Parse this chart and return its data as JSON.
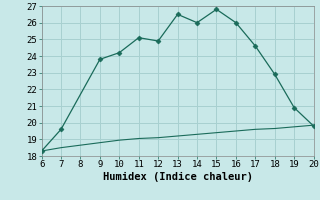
{
  "xlabel": "Humidex (Indice chaleur)",
  "x_main": [
    6,
    7,
    9,
    10,
    11,
    12,
    13,
    14,
    15,
    16,
    17,
    18,
    19,
    20
  ],
  "y_main": [
    18.3,
    19.6,
    23.8,
    24.2,
    25.1,
    24.9,
    26.5,
    26.0,
    26.8,
    26.0,
    24.6,
    22.9,
    20.9,
    19.8
  ],
  "x_flat": [
    6,
    7,
    8,
    9,
    10,
    11,
    12,
    13,
    14,
    15,
    16,
    17,
    18,
    19,
    20
  ],
  "y_flat": [
    18.3,
    18.5,
    18.65,
    18.8,
    18.95,
    19.05,
    19.1,
    19.2,
    19.3,
    19.4,
    19.5,
    19.6,
    19.65,
    19.75,
    19.85
  ],
  "line_color": "#1a6b5a",
  "bg_color": "#c8e8e8",
  "grid_color": "#a8d0d0",
  "marker": "D",
  "marker_size": 2.5,
  "ylim": [
    18,
    27
  ],
  "xlim": [
    6,
    20
  ],
  "yticks": [
    18,
    19,
    20,
    21,
    22,
    23,
    24,
    25,
    26,
    27
  ],
  "xticks": [
    6,
    7,
    8,
    9,
    10,
    11,
    12,
    13,
    14,
    15,
    16,
    17,
    18,
    19,
    20
  ],
  "tick_fontsize": 6.5,
  "xlabel_fontsize": 7.5
}
